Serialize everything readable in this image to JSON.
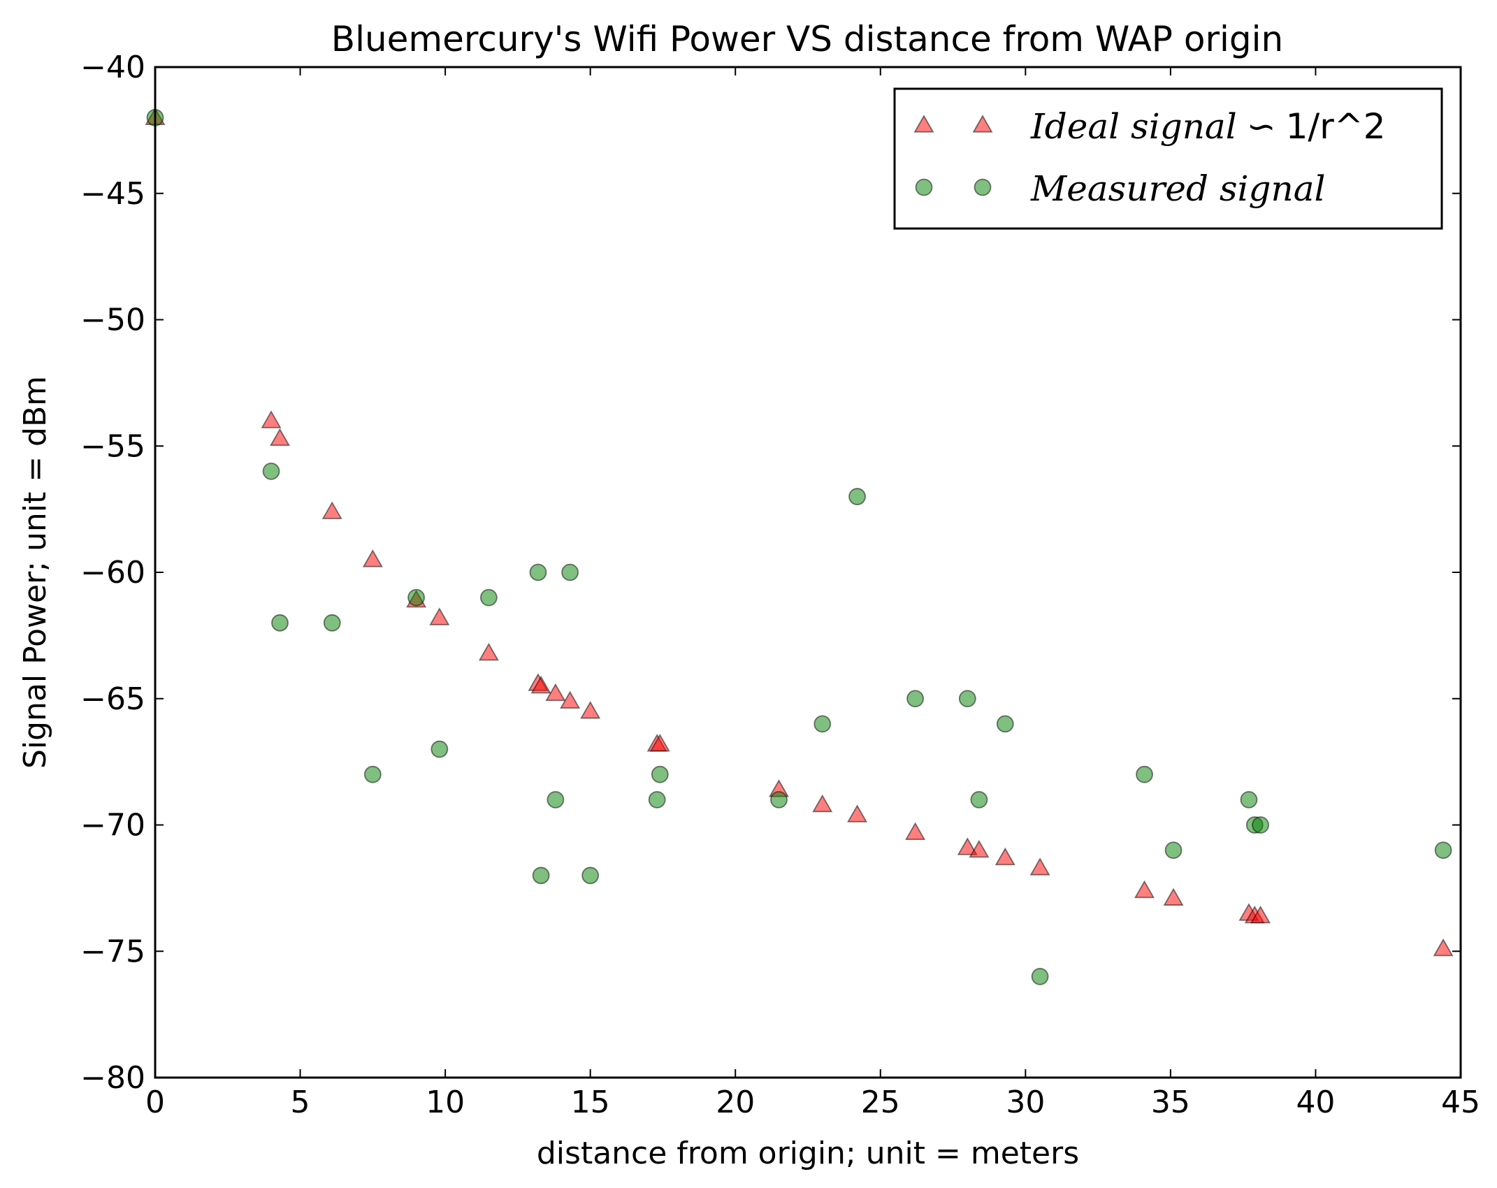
{
  "chart_data": {
    "type": "scatter",
    "title": "Bluemercury's Wifi Power VS distance from WAP origin",
    "xlabel": "distance from origin; unit = meters",
    "ylabel": "Signal Power; unit = dBm",
    "xlim": [
      0,
      45
    ],
    "ylim": [
      -80,
      -40
    ],
    "xticks": [
      "0",
      "5",
      "10",
      "15",
      "20",
      "25",
      "30",
      "35",
      "40",
      "45"
    ],
    "yticks": [
      "−40",
      "−45",
      "−50",
      "−55",
      "−60",
      "−65",
      "−70",
      "−75",
      "−80"
    ],
    "grid": false,
    "legend_position": "top-right",
    "series": [
      {
        "name": "Ideal signal ∽ 1/r^2",
        "name_italic": "Ideal signal",
        "name_symbol": "∽",
        "name_plain": "1/r^2",
        "marker": "triangle",
        "color": "#ff0000",
        "x": [
          0,
          4.0,
          4.3,
          6.1,
          7.5,
          9.0,
          9.8,
          11.5,
          13.2,
          13.3,
          13.8,
          14.3,
          15.0,
          17.3,
          17.4,
          21.5,
          23.0,
          24.2,
          26.2,
          28.0,
          28.4,
          29.3,
          30.5,
          34.1,
          35.1,
          37.7,
          37.9,
          38.1,
          44.4
        ],
        "y": [
          -42.0,
          -54.0,
          -54.7,
          -57.6,
          -59.5,
          -61.1,
          -61.8,
          -63.2,
          -64.4,
          -64.5,
          -64.8,
          -65.1,
          -65.5,
          -66.8,
          -66.8,
          -68.6,
          -69.2,
          -69.6,
          -70.3,
          -70.9,
          -71.0,
          -71.3,
          -71.7,
          -72.6,
          -72.9,
          -73.5,
          -73.6,
          -73.6,
          -74.9
        ]
      },
      {
        "name": "Measured signal",
        "name_italic": "Measured signal",
        "marker": "circle",
        "color": "#008000",
        "x": [
          0,
          4.0,
          4.3,
          6.1,
          7.5,
          9.0,
          9.8,
          11.5,
          13.2,
          13.3,
          13.8,
          14.3,
          15.0,
          17.3,
          17.4,
          21.5,
          23.0,
          24.2,
          26.2,
          28.0,
          28.4,
          29.3,
          30.5,
          34.1,
          35.1,
          37.7,
          37.9,
          38.1,
          44.4
        ],
        "y": [
          -42,
          -56,
          -62,
          -62,
          -68,
          -61,
          -67,
          -61,
          -60,
          -72,
          -69,
          -60,
          -72,
          -69,
          -68,
          -69,
          -66,
          -57,
          -65,
          -65,
          -69,
          -66,
          -76,
          -68,
          -71,
          -69,
          -70,
          -70,
          -71
        ]
      }
    ]
  }
}
